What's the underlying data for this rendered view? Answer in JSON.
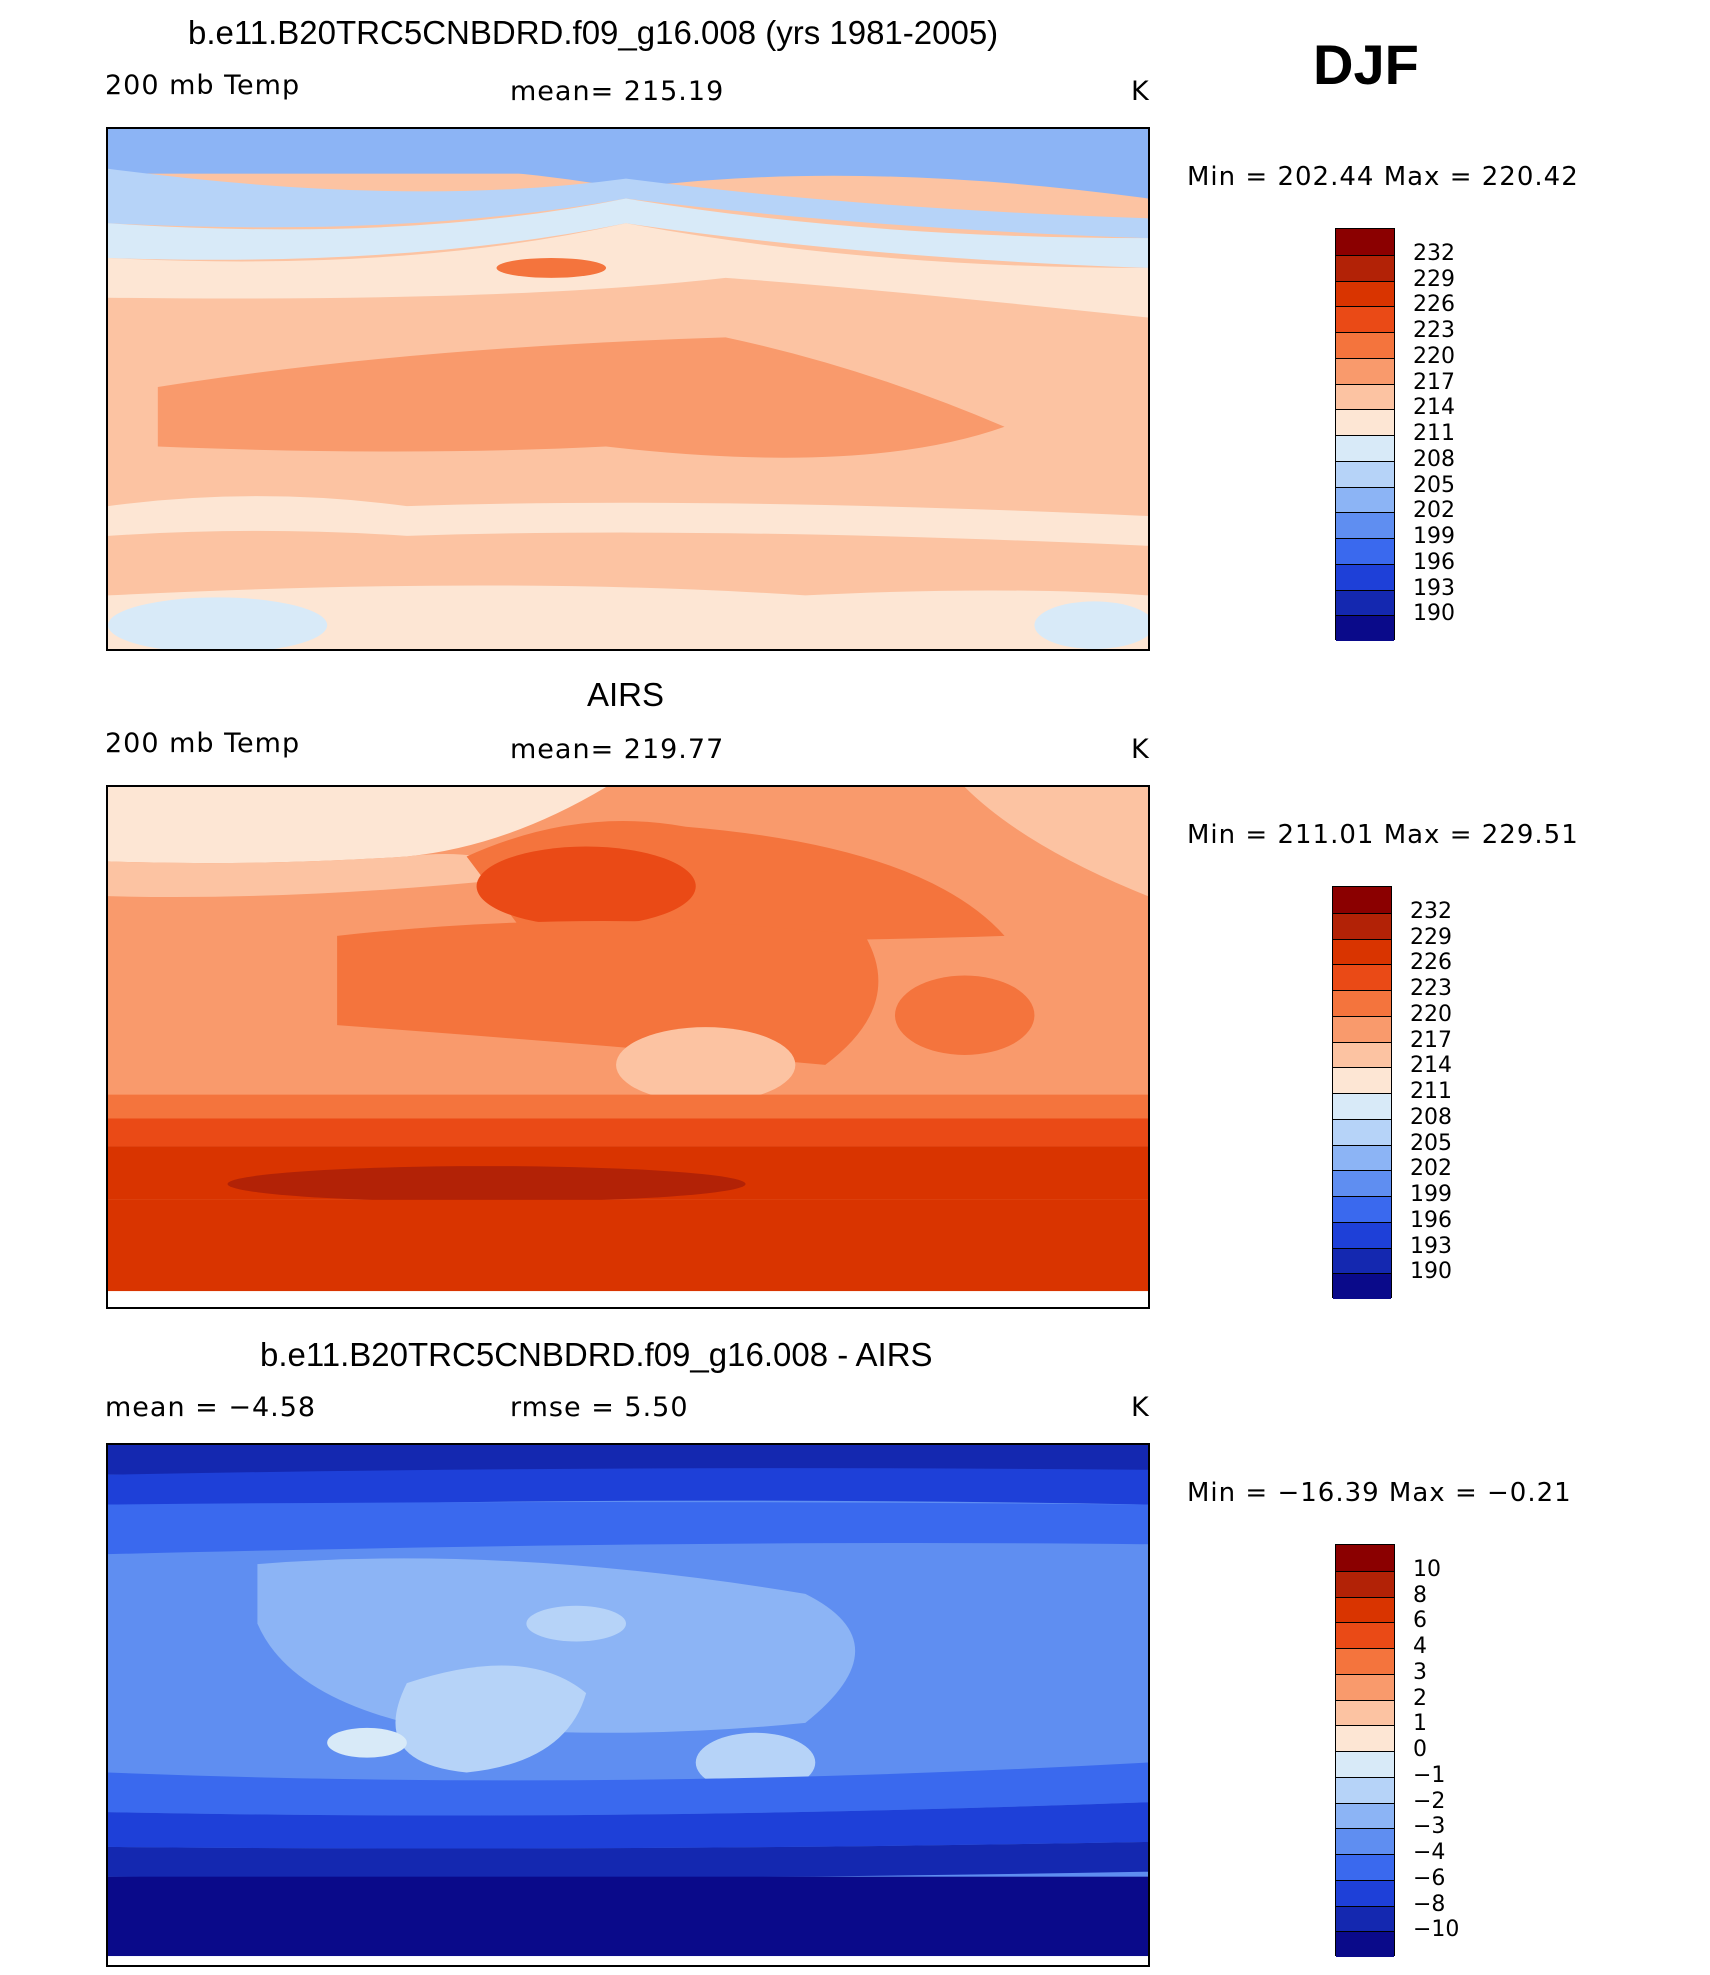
{
  "season": "DJF",
  "panels": [
    {
      "id": "model",
      "title": "b.e11.B20TRC5CNBDRD.f09_g16.008 (yrs 1981-2005)",
      "left_label": "200 mb Temp",
      "center_label": "mean=  215.19",
      "units": "K",
      "minmax": "Min  =  202.44  Max  =  220.42"
    },
    {
      "id": "obs",
      "title": "AIRS",
      "left_label": "200 mb Temp",
      "center_label": "mean=  219.77",
      "units": "K",
      "minmax": "Min  =  211.01  Max  =  229.51"
    },
    {
      "id": "diff",
      "title": "b.e11.B20TRC5CNBDRD.f09_g16.008 - AIRS",
      "left_label": "mean  =    −4.58",
      "center_label": "rmse  =     5.50",
      "units": "K",
      "minmax": "Min  =  −16.39  Max  =   −0.21"
    }
  ],
  "colorbars": {
    "temp": {
      "levels": [
        "232",
        "229",
        "226",
        "223",
        "220",
        "217",
        "214",
        "211",
        "208",
        "205",
        "202",
        "199",
        "196",
        "193",
        "190"
      ],
      "colors": [
        "#8b0000",
        "#b22206",
        "#d93400",
        "#ea4a16",
        "#f4743d",
        "#f99a6c",
        "#fcc3a2",
        "#fde6d4",
        "#d8eaf8",
        "#b6d3f8",
        "#8cb4f5",
        "#5f8ef1",
        "#3a69ee",
        "#1e40d8",
        "#1428b0",
        "#0a0a8a"
      ]
    },
    "diff": {
      "levels": [
        "10",
        "8",
        "6",
        "4",
        "3",
        "2",
        "1",
        "0",
        "−1",
        "−2",
        "−3",
        "−4",
        "−6",
        "−8",
        "−10"
      ],
      "colors": [
        "#8b0000",
        "#b22206",
        "#d93400",
        "#ea4a16",
        "#f4743d",
        "#f99a6c",
        "#fcc3a2",
        "#fde6d4",
        "#d8eaf8",
        "#b6d3f8",
        "#8cb4f5",
        "#5f8ef1",
        "#3a69ee",
        "#1e40d8",
        "#1428b0",
        "#0a0a8a"
      ]
    }
  }
}
